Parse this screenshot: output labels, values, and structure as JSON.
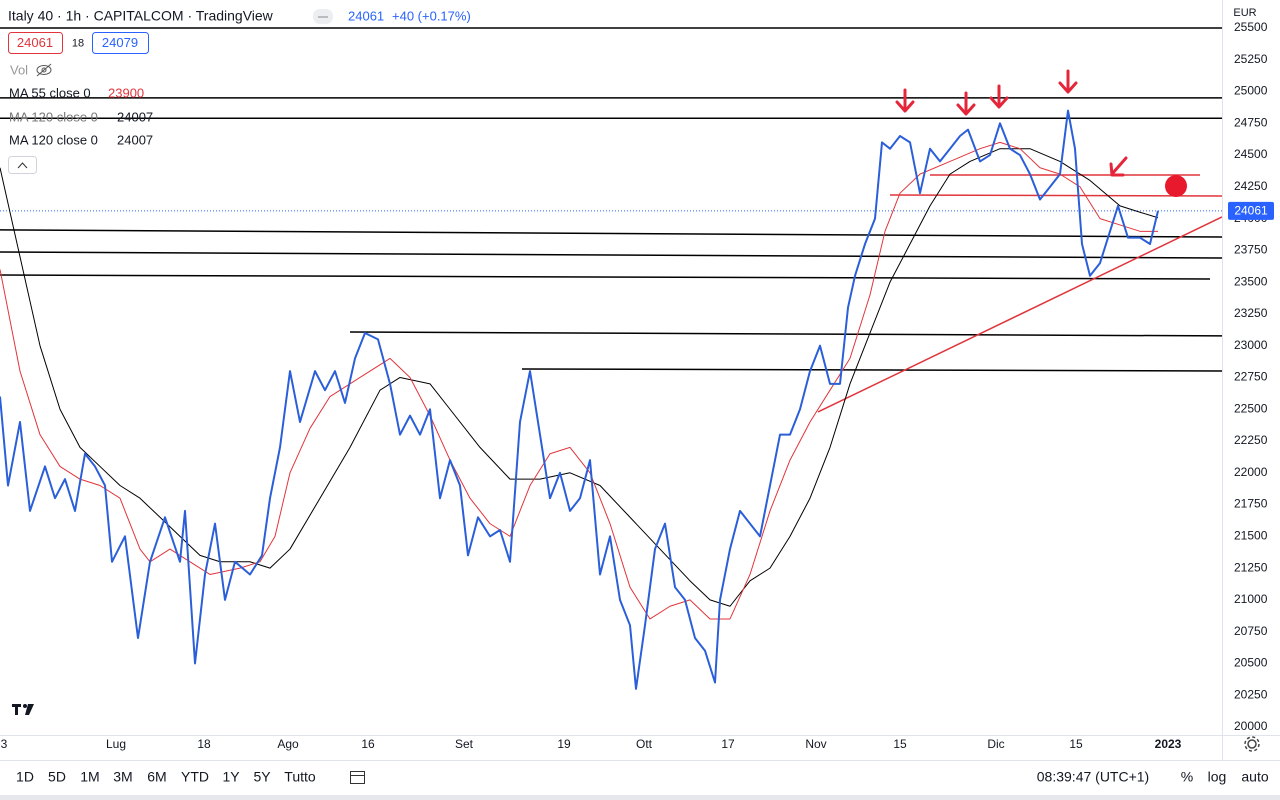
{
  "header": {
    "title": "Italy 40 · 1h · CAPITALCOM · TradingView",
    "price": 24061,
    "change": "+40 (+0.17%)",
    "bid": 24061,
    "spread": 18,
    "ask": 24079,
    "volume": "Vol",
    "indicators": [
      {
        "label": "MA 55 close 0",
        "value": 23900
      },
      {
        "label": "MA 120 close 0",
        "value": 24007
      },
      {
        "label": "MA 120 close 0",
        "value": 24007
      }
    ]
  },
  "currency": "EUR",
  "toolbar": {
    "ranges": [
      "1D",
      "5D",
      "1M",
      "3M",
      "6M",
      "YTD",
      "1Y",
      "5Y",
      "Tutto"
    ],
    "time": "08:39:47 (UTC+1)",
    "options": [
      "%",
      "log",
      "auto"
    ]
  },
  "chart_data": {
    "type": "line",
    "xlim": [
      0,
      305.5
    ],
    "ylim": [
      19937,
      25720
    ],
    "xticks": [
      {
        "value": 1,
        "label": "3"
      },
      {
        "value": 29,
        "label": "Lug"
      },
      {
        "value": 51,
        "label": "18"
      },
      {
        "value": 72,
        "label": "Ago"
      },
      {
        "value": 92,
        "label": "16"
      },
      {
        "value": 116,
        "label": "Set"
      },
      {
        "value": 141,
        "label": "19"
      },
      {
        "value": 161,
        "label": "Ott"
      },
      {
        "value": 182,
        "label": "17"
      },
      {
        "value": 204,
        "label": "Nov"
      },
      {
        "value": 225,
        "label": "15"
      },
      {
        "value": 249,
        "label": "Dic"
      },
      {
        "value": 269,
        "label": "15"
      },
      {
        "value": 292,
        "label": "2023"
      }
    ],
    "yticks": [
      20000,
      20250,
      20500,
      20750,
      21000,
      21250,
      21500,
      21750,
      22000,
      22250,
      22500,
      22750,
      23000,
      23250,
      23500,
      23750,
      24000,
      24250,
      24500,
      24750,
      25000,
      25250,
      25500
    ],
    "last_price": 24061,
    "series": [
      {
        "color": "#2b5fd9",
        "width": 2,
        "x": [
          0,
          2,
          5,
          7.5,
          11.25,
          13.75,
          16.25,
          18.75,
          21.25,
          23.75,
          26.25,
          28,
          31.25,
          34.5,
          37.5,
          41.25,
          45,
          46.25,
          48.75,
          51.25,
          53.75,
          56.25,
          58.75,
          62.5,
          65.5,
          67.5,
          70,
          72.5,
          75,
          78.75,
          81.25,
          83.75,
          86.25,
          88.75,
          91.25,
          94.5,
          97.5,
          100,
          102.5,
          105,
          107.5,
          110,
          112.5,
          115,
          117,
          119.5,
          122.5,
          125,
          127.5,
          130,
          132.5,
          135,
          137.5,
          140,
          142.5,
          145,
          147.5,
          150,
          152.5,
          155,
          157.5,
          159,
          161.25,
          163.75,
          166.25,
          168.75,
          171.25,
          173.75,
          176.25,
          178.75,
          180,
          182.5,
          185,
          187.5,
          190,
          192.5,
          195,
          197.5,
          200,
          202.5,
          205,
          207.5,
          210,
          212,
          213.75,
          216.25,
          218.75,
          220.5,
          222.5,
          225,
          227.5,
          230,
          232.5,
          235,
          237.5,
          240,
          242,
          245,
          247.5,
          250,
          252.5,
          255,
          257.5,
          260,
          262.5,
          265,
          267,
          268.75,
          270.5,
          272.5,
          275,
          277.5,
          279.5,
          282,
          285,
          287.5,
          289.5
        ],
        "values": [
          22600,
          21900,
          22400,
          21700,
          22050,
          21800,
          21950,
          21700,
          22150,
          22050,
          21900,
          21300,
          21500,
          20700,
          21300,
          21650,
          21300,
          21700,
          20500,
          21200,
          21600,
          21000,
          21300,
          21200,
          21350,
          21800,
          22200,
          22800,
          22400,
          22800,
          22650,
          22800,
          22550,
          22900,
          23100,
          23050,
          22700,
          22300,
          22450,
          22300,
          22500,
          21800,
          22100,
          21900,
          21350,
          21650,
          21500,
          21550,
          21300,
          22400,
          22800,
          22300,
          21800,
          22000,
          21700,
          21800,
          22100,
          21200,
          21500,
          21000,
          20800,
          20300,
          20800,
          21400,
          21600,
          21100,
          21000,
          20700,
          20600,
          20350,
          21000,
          21400,
          21700,
          21600,
          21500,
          21900,
          22300,
          22300,
          22500,
          22800,
          23000,
          22700,
          22700,
          23300,
          23550,
          23800,
          24000,
          24600,
          24550,
          24650,
          24600,
          24200,
          24550,
          24450,
          24550,
          24650,
          24700,
          24450,
          24500,
          24750,
          24550,
          24500,
          24350,
          24150,
          24250,
          24350,
          24850,
          24550,
          23800,
          23550,
          23650,
          23900,
          24100,
          23850,
          23850,
          23800,
          24061
        ]
      },
      {
        "color": "#e0353b",
        "width": 1,
        "x": [
          0,
          5,
          10,
          15,
          20,
          25,
          30,
          35,
          37.5,
          42.5,
          47.5,
          52.5,
          60,
          65,
          68.75,
          72.5,
          77.5,
          82.5,
          90,
          97.5,
          102.5,
          107.5,
          112.5,
          117.5,
          122.5,
          127.5,
          132.5,
          137.5,
          142.5,
          147.5,
          152.5,
          157.5,
          162.5,
          167.5,
          172.5,
          177.5,
          182.5,
          187.5,
          192.5,
          197.5,
          202.5,
          207.5,
          212.5,
          217.5,
          221.25,
          225,
          230,
          237.5,
          245,
          250,
          255,
          260,
          265,
          270,
          275,
          280,
          285,
          289.5
        ],
        "values": [
          23600,
          22800,
          22300,
          22050,
          21950,
          21900,
          21800,
          21400,
          21300,
          21400,
          21300,
          21200,
          21250,
          21300,
          21500,
          22000,
          22350,
          22600,
          22750,
          22900,
          22750,
          22450,
          22100,
          21800,
          21600,
          21500,
          21900,
          22150,
          22200,
          22000,
          21600,
          21100,
          20850,
          20950,
          21000,
          20850,
          20850,
          21200,
          21700,
          22100,
          22400,
          22650,
          22900,
          23400,
          23900,
          24200,
          24350,
          24450,
          24550,
          24600,
          24550,
          24400,
          24350,
          24250,
          24000,
          23950,
          23900,
          23900
        ]
      },
      {
        "color": "#000000",
        "width": 1,
        "x": [
          0,
          5,
          10,
          15,
          20,
          25,
          30,
          35,
          40,
          45,
          50,
          55,
          62.5,
          67.5,
          72.5,
          80,
          87.5,
          95,
          100,
          107.5,
          112.5,
          120,
          127.5,
          135,
          142.5,
          150,
          157.5,
          165,
          172.5,
          177.5,
          182.5,
          187.5,
          192.5,
          197.5,
          202.5,
          207.5,
          212.5,
          217.5,
          222.5,
          227.5,
          232.5,
          237.5,
          242.5,
          250,
          257.5,
          265,
          272.5,
          280,
          285,
          289.5
        ],
        "values": [
          24400,
          23700,
          23000,
          22500,
          22200,
          22050,
          21900,
          21800,
          21650,
          21500,
          21350,
          21300,
          21300,
          21250,
          21400,
          21800,
          22200,
          22650,
          22750,
          22700,
          22500,
          22200,
          21950,
          21950,
          22000,
          21900,
          21650,
          21400,
          21150,
          21000,
          20950,
          21150,
          21250,
          21500,
          21800,
          22200,
          22700,
          23100,
          23500,
          23800,
          24100,
          24350,
          24450,
          24550,
          24550,
          24450,
          24300,
          24100,
          24050,
          24007
        ]
      }
    ],
    "drawings": [
      {
        "color": "#000000",
        "x": [
          0,
          305.5
        ],
        "y": [
          25500,
          25500
        ]
      },
      {
        "color": "#000000",
        "x": [
          0,
          305.5
        ],
        "y": [
          24950,
          24950
        ]
      },
      {
        "color": "#000000",
        "x": [
          0,
          305.5
        ],
        "y": [
          24790,
          24790
        ]
      },
      {
        "color": "#000000",
        "x": [
          0,
          305.5
        ],
        "y": [
          23911,
          23855
        ]
      },
      {
        "color": "#000000",
        "x": [
          0,
          305.5
        ],
        "y": [
          23737,
          23690
        ]
      },
      {
        "color": "#000000",
        "x": [
          0,
          302.5
        ],
        "y": [
          23556,
          23525
        ]
      },
      {
        "color": "#000000",
        "x": [
          87.5,
          305.5
        ],
        "y": [
          23108,
          23077
        ]
      },
      {
        "color": "#000000",
        "x": [
          130.5,
          305.5
        ],
        "y": [
          22817,
          22801
        ]
      },
      {
        "color": "#e0353b",
        "x": [
          232.5,
          300
        ],
        "y": [
          24343,
          24343
        ]
      },
      {
        "color": "#e0353b",
        "x": [
          222.5,
          305.5
        ],
        "y": [
          24186,
          24178
        ]
      },
      {
        "color": "#e0353b",
        "x": [
          204.5,
          305.5
        ],
        "y": [
          22479,
          24013
        ]
      }
    ]
  }
}
